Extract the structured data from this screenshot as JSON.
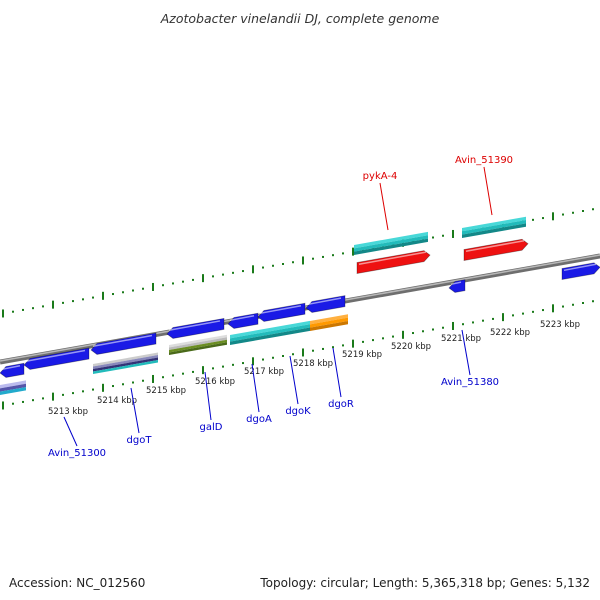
{
  "title": "Azotobacter vinelandii DJ, complete genome",
  "footer": {
    "accession": "Accession: NC_012560",
    "summary": "Topology: circular; Length: 5,365,318 bp; Genes: 5,132"
  },
  "colors": {
    "forward_label": "#dd0000",
    "reverse_label": "#0000cc",
    "backbone": "#8a8a8a",
    "tick": "#1a7a1a",
    "cds": "#1a1ae6",
    "rna": "#22cccc",
    "highlight_red": "#ee1111",
    "orange": "#ff9900",
    "olive": "#6b8e23"
  },
  "kbp_ticks": [
    "5213 kbp",
    "5214 kbp",
    "5215 kbp",
    "5216 kbp",
    "5217 kbp",
    "5218 kbp",
    "5219 kbp",
    "5220 kbp",
    "5221 kbp",
    "5222 kbp",
    "5223 kbp"
  ],
  "forward_labels": [
    "pykA-4",
    "Avin_51390"
  ],
  "reverse_labels": [
    "Avin_51300",
    "dgoT",
    "galD",
    "dgoA",
    "dgoK",
    "dgoR",
    "Avin_51380"
  ]
}
